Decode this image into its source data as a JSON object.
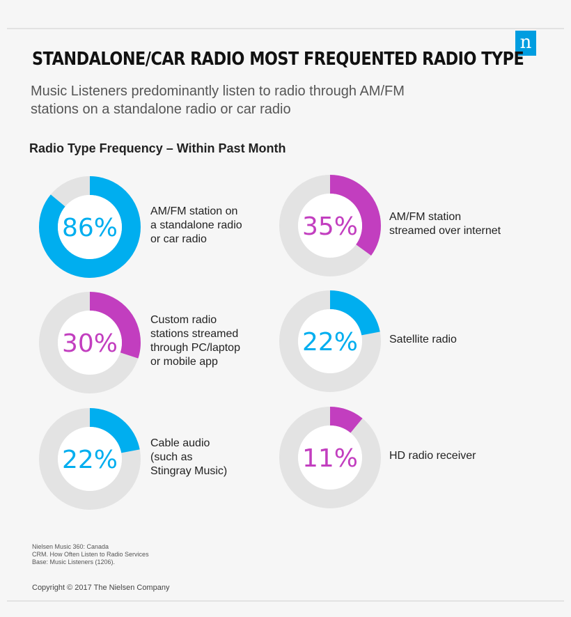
{
  "brand": {
    "logo_letter": "n",
    "logo_color": "#009de0"
  },
  "header": {
    "title": "STANDALONE/CAR RADIO MOST FREQUENTED RADIO TYPE",
    "subtitle_line1": "Music Listeners predominantly listen to radio through AM/FM",
    "subtitle_line2": "stations on a standalone radio or car radio"
  },
  "colors": {
    "blue": "#00aeef",
    "magenta": "#c23ebf",
    "track": "#e3e3e3"
  },
  "chart_data": {
    "type": "pie",
    "title": "Radio Type Frequency – Within Past Month",
    "series": [
      {
        "value": 86,
        "label_text": "86%",
        "label_lines": [
          "AM/FM station on",
          "a standalone radio",
          "or car radio"
        ],
        "color": "#00aeef"
      },
      {
        "value": 35,
        "label_text": "35%",
        "label_lines": [
          "AM/FM station",
          "streamed over internet"
        ],
        "color": "#c23ebf"
      },
      {
        "value": 30,
        "label_text": "30%",
        "label_lines": [
          "Custom radio",
          "stations streamed",
          "through PC/laptop",
          "or mobile app"
        ],
        "color": "#c23ebf"
      },
      {
        "value": 22,
        "label_text": "22%",
        "label_lines": [
          "Satellite radio"
        ],
        "color": "#00aeef"
      },
      {
        "value": 22,
        "label_text": "22%",
        "label_lines": [
          "Cable audio",
          "(such as",
          "Stingray Music)"
        ],
        "color": "#00aeef"
      },
      {
        "value": 11,
        "label_text": "11%",
        "label_lines": [
          "HD radio receiver"
        ],
        "color": "#c23ebf"
      }
    ]
  },
  "footer": {
    "notes": [
      "Nielsen Music 360: Canada",
      "CRM. How Often Listen to Radio Services",
      "Base: Music Listeners (1206)."
    ],
    "copyright": "Copyright © 2017 The Nielsen Company"
  }
}
